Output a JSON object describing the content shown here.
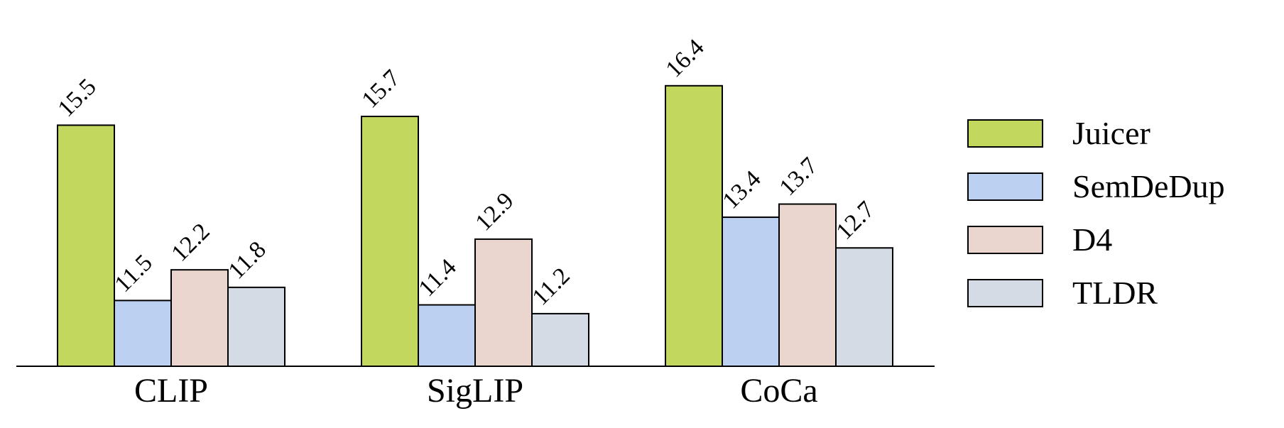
{
  "chart_data": {
    "type": "bar",
    "categories": [
      "CLIP",
      "SigLIP",
      "CoCa"
    ],
    "series": [
      {
        "name": "Juicer",
        "color": "#c2d75e",
        "values": [
          15.5,
          15.7,
          16.4
        ]
      },
      {
        "name": "SemDeDup",
        "color": "#bcd0f2",
        "values": [
          11.5,
          11.4,
          13.4
        ]
      },
      {
        "name": "D4",
        "color": "#ead5cf",
        "values": [
          12.2,
          12.9,
          13.7
        ]
      },
      {
        "name": "TLDR",
        "color": "#d5dbe5",
        "values": [
          11.8,
          11.2,
          12.7
        ]
      }
    ],
    "ylim": [
      10,
      18
    ],
    "legend": "right"
  }
}
